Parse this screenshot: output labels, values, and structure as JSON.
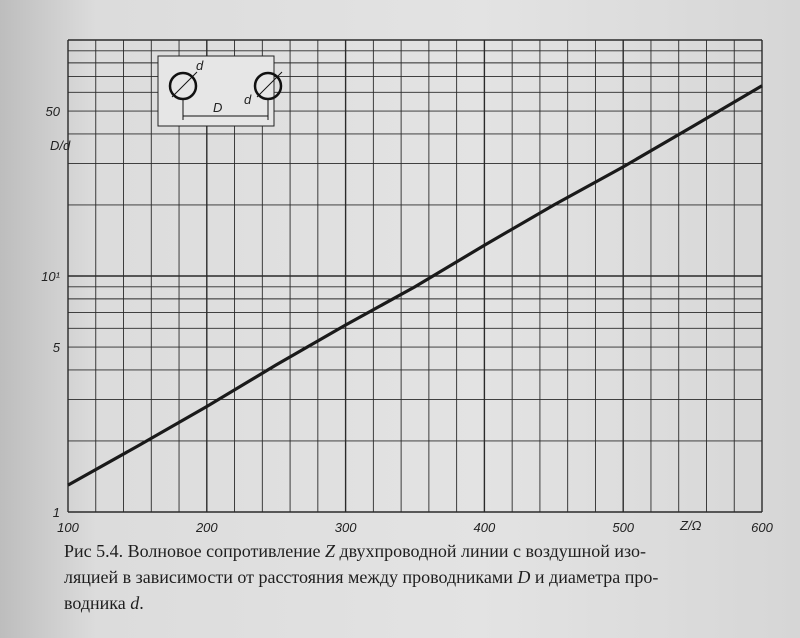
{
  "chart_data": {
    "type": "line",
    "xlabel": "Z/Ω",
    "ylabel": "D/d",
    "x_ticks": [
      "100",
      "200",
      "300",
      "400",
      "500",
      "600"
    ],
    "x_tick_values": [
      100,
      200,
      300,
      400,
      500,
      600
    ],
    "y_ticks": [
      "1",
      "5",
      "10¹",
      "50"
    ],
    "y_tick_values": [
      1,
      5,
      10,
      50
    ],
    "xlim": [
      100,
      600
    ],
    "ylim": [
      1,
      100
    ],
    "y_scale": "log",
    "grid": true,
    "series": [
      {
        "x": [
          100,
          150,
          200,
          250,
          300,
          350,
          400,
          450,
          500,
          550,
          600
        ],
        "y": [
          1.3,
          1.9,
          2.8,
          4.2,
          6.2,
          9.0,
          13.5,
          20,
          29,
          43,
          64
        ]
      }
    ],
    "inset": {
      "label_d": "d",
      "label_D": "D"
    }
  },
  "caption": {
    "prefix": "Рис 5.4. Волновое сопротивление ",
    "z": "Z",
    "line1_rest": " двухпроводной линии с воздушной изо-",
    "line2": "ляцией в зависимости от расстояния между проводниками ",
    "D": "D",
    "line2_rest": " и диаметра про-",
    "line3": "водника ",
    "d": "d",
    "line3_end": "."
  },
  "colors": {
    "grid": "#2a2a2a",
    "line": "#1a1a1a",
    "text": "#1e1e1e"
  }
}
